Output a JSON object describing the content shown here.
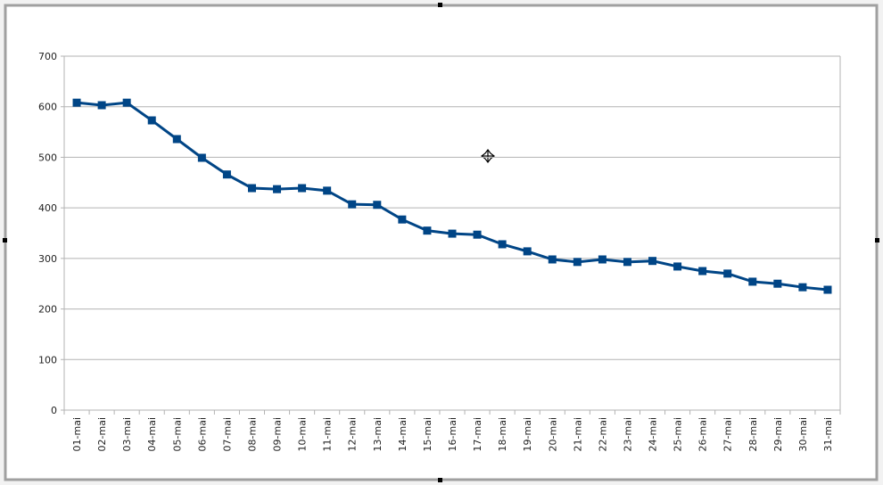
{
  "chart_data": {
    "type": "line",
    "categories": [
      "01-mai",
      "02-mai",
      "03-mai",
      "04-mai",
      "05-mai",
      "06-mai",
      "07-mai",
      "08-mai",
      "09-mai",
      "10-mai",
      "11-mai",
      "12-mai",
      "13-mai",
      "14-mai",
      "15-mai",
      "16-mai",
      "17-mai",
      "18-mai",
      "19-mai",
      "20-mai",
      "21-mai",
      "22-mai",
      "23-mai",
      "24-mai",
      "25-mai",
      "26-mai",
      "27-mai",
      "28-mai",
      "29-mai",
      "30-mai",
      "31-mai"
    ],
    "values": [
      608,
      603,
      608,
      573,
      536,
      499,
      466,
      439,
      437,
      439,
      434,
      407,
      406,
      377,
      355,
      349,
      347,
      328,
      314,
      298,
      293,
      298,
      293,
      295,
      284,
      275,
      270,
      254,
      250,
      243,
      238
    ],
    "color": "#004586",
    "ylim": [
      0,
      700
    ],
    "yticks": [
      0,
      100,
      200,
      300,
      400,
      500,
      600,
      700
    ],
    "grid": true
  }
}
